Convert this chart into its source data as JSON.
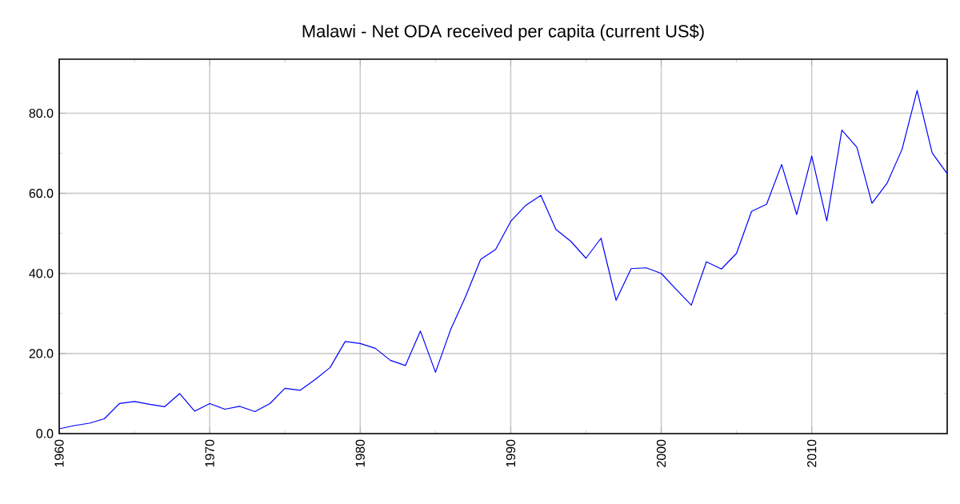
{
  "chart_data": {
    "type": "line",
    "title": "Malawi - Net ODA received per capita (current US$)",
    "x": [
      1960,
      1961,
      1962,
      1963,
      1964,
      1965,
      1966,
      1967,
      1968,
      1969,
      1970,
      1971,
      1972,
      1973,
      1974,
      1975,
      1976,
      1977,
      1978,
      1979,
      1980,
      1981,
      1982,
      1983,
      1984,
      1985,
      1986,
      1987,
      1988,
      1989,
      1990,
      1991,
      1992,
      1993,
      1994,
      1995,
      1996,
      1997,
      1998,
      1999,
      2000,
      2001,
      2002,
      2003,
      2004,
      2005,
      2006,
      2007,
      2008,
      2009,
      2010,
      2011,
      2012,
      2013,
      2014,
      2015,
      2016,
      2017,
      2018,
      2019
    ],
    "series": [
      {
        "color": "#0000ff",
        "values": [
          1.2,
          2.0,
          2.6,
          3.7,
          7.5,
          8.0,
          7.3,
          6.7,
          10.0,
          5.6,
          7.5,
          6.1,
          6.8,
          5.5,
          7.5,
          11.3,
          10.8,
          13.5,
          16.5,
          23.0,
          22.5,
          21.3,
          18.3,
          17.0,
          25.6,
          15.3,
          25.9,
          34.2,
          43.5,
          46.0,
          53.0,
          57.0,
          59.5,
          51.0,
          48.0,
          43.8,
          48.8,
          33.3,
          41.2,
          41.4,
          40.0,
          36.0,
          32.1,
          42.9,
          41.1,
          45.0,
          55.5,
          57.3,
          67.2,
          54.7,
          69.3,
          53.1,
          75.8,
          71.5,
          57.5,
          62.5,
          71.0,
          85.7,
          70.1,
          64.9
        ]
      }
    ],
    "xlim": [
      1960,
      2019
    ],
    "ylim": [
      0,
      93.5
    ],
    "xticks": [
      1960,
      1970,
      1980,
      1990,
      2000,
      2010
    ],
    "yticks": [
      {
        "value": 0,
        "label": "0.0"
      },
      {
        "value": 20,
        "label": "20.0"
      },
      {
        "value": 40,
        "label": "40.0"
      },
      {
        "value": 60,
        "label": "60.0"
      },
      {
        "value": 80,
        "label": "80.0"
      }
    ],
    "grid": true,
    "marker": "none",
    "line_style": "solid"
  }
}
